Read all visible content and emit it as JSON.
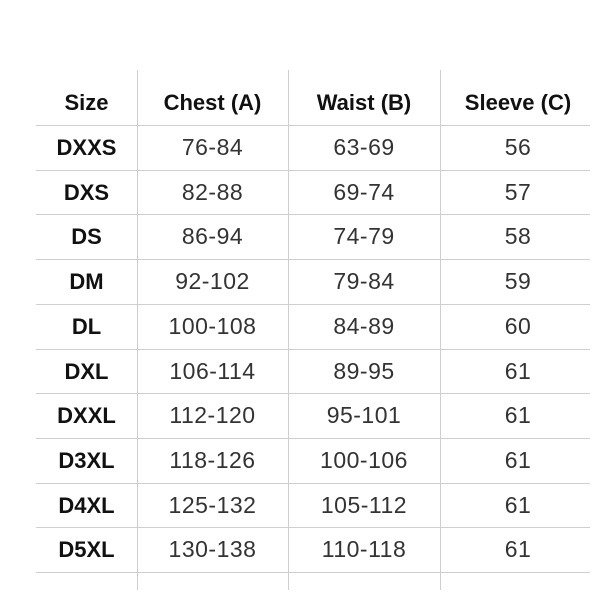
{
  "table": {
    "headers": [
      "Size",
      "Chest (A)",
      "Waist (B)",
      "Sleeve (C)"
    ],
    "rows": [
      [
        "DXXS",
        "76-84",
        "63-69",
        "56"
      ],
      [
        "DXS",
        "82-88",
        "69-74",
        "57"
      ],
      [
        "DS",
        "86-94",
        "74-79",
        "58"
      ],
      [
        "DM",
        "92-102",
        "79-84",
        "59"
      ],
      [
        "DL",
        "100-108",
        "84-89",
        "60"
      ],
      [
        "DXL",
        "106-114",
        "89-95",
        "61"
      ],
      [
        "DXXL",
        "112-120",
        "95-101",
        "61"
      ],
      [
        "D3XL",
        "118-126",
        "100-106",
        "61"
      ],
      [
        "D4XL",
        "125-132",
        "105-112",
        "61"
      ],
      [
        "D5XL",
        "130-138",
        "110-118",
        "61"
      ]
    ]
  }
}
